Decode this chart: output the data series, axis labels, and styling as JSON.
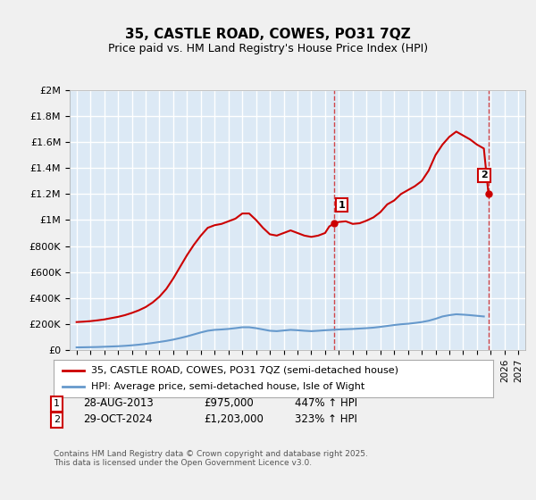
{
  "title": "35, CASTLE ROAD, COWES, PO31 7QZ",
  "subtitle": "Price paid vs. HM Land Registry's House Price Index (HPI)",
  "background_color": "#dce9f5",
  "plot_bg_color": "#dce9f5",
  "grid_color": "#ffffff",
  "red_line_color": "#cc0000",
  "blue_line_color": "#6699cc",
  "marker1_date_idx": 18.67,
  "marker2_date_idx": 29.83,
  "annotation1": "1",
  "annotation2": "2",
  "legend_label1": "35, CASTLE ROAD, COWES, PO31 7QZ (semi-detached house)",
  "legend_label2": "HPI: Average price, semi-detached house, Isle of Wight",
  "table_row1": [
    "1",
    "28-AUG-2013",
    "£975,000",
    "447% ↑ HPI"
  ],
  "table_row2": [
    "2",
    "29-OCT-2024",
    "£1,203,000",
    "323% ↑ HPI"
  ],
  "footer": "Contains HM Land Registry data © Crown copyright and database right 2025.\nThis data is licensed under the Open Government Licence v3.0.",
  "xlim_start": 1994.5,
  "xlim_end": 2027.5,
  "ylim_bottom": 0,
  "ylim_top": 2000000,
  "yticks": [
    0,
    200000,
    400000,
    600000,
    800000,
    1000000,
    1200000,
    1400000,
    1600000,
    1800000,
    2000000
  ],
  "ytick_labels": [
    "£0",
    "£200K",
    "£400K",
    "£600K",
    "£800K",
    "£1M",
    "£1.2M",
    "£1.4M",
    "£1.6M",
    "£1.8M",
    "£2M"
  ],
  "red_x": [
    1995,
    1995.5,
    1996,
    1996.5,
    1997,
    1997.5,
    1998,
    1998.5,
    1999,
    1999.5,
    2000,
    2000.5,
    2001,
    2001.5,
    2002,
    2002.5,
    2003,
    2003.5,
    2004,
    2004.5,
    2005,
    2005.5,
    2006,
    2006.5,
    2007,
    2007.5,
    2008,
    2008.5,
    2009,
    2009.5,
    2010,
    2010.5,
    2011,
    2011.5,
    2012,
    2012.5,
    2013,
    2013.3,
    2013.67,
    2014,
    2014.5,
    2015,
    2015.5,
    2016,
    2016.5,
    2017,
    2017.5,
    2018,
    2018.5,
    2019,
    2019.5,
    2020,
    2020.5,
    2021,
    2021.5,
    2022,
    2022.5,
    2023,
    2023.5,
    2024,
    2024.5,
    2024.83
  ],
  "red_y": [
    215000,
    218000,
    222000,
    228000,
    235000,
    245000,
    255000,
    268000,
    285000,
    305000,
    330000,
    365000,
    410000,
    470000,
    550000,
    640000,
    730000,
    810000,
    880000,
    940000,
    960000,
    970000,
    990000,
    1010000,
    1050000,
    1050000,
    1000000,
    940000,
    890000,
    880000,
    900000,
    920000,
    900000,
    880000,
    870000,
    880000,
    900000,
    950000,
    975000,
    985000,
    990000,
    970000,
    975000,
    995000,
    1020000,
    1060000,
    1120000,
    1150000,
    1200000,
    1230000,
    1260000,
    1300000,
    1380000,
    1500000,
    1580000,
    1640000,
    1680000,
    1650000,
    1620000,
    1580000,
    1550000,
    1203000
  ],
  "blue_x": [
    1995,
    1995.5,
    1996,
    1996.5,
    1997,
    1997.5,
    1998,
    1998.5,
    1999,
    1999.5,
    2000,
    2000.5,
    2001,
    2001.5,
    2002,
    2002.5,
    2003,
    2003.5,
    2004,
    2004.5,
    2005,
    2005.5,
    2006,
    2006.5,
    2007,
    2007.5,
    2008,
    2008.5,
    2009,
    2009.5,
    2010,
    2010.5,
    2011,
    2011.5,
    2012,
    2012.5,
    2013,
    2013.5,
    2014,
    2014.5,
    2015,
    2015.5,
    2016,
    2016.5,
    2017,
    2017.5,
    2018,
    2018.5,
    2019,
    2019.5,
    2020,
    2020.5,
    2021,
    2021.5,
    2022,
    2022.5,
    2023,
    2023.5,
    2024,
    2024.5
  ],
  "blue_y": [
    20000,
    21000,
    22000,
    23000,
    25000,
    27000,
    29000,
    32000,
    36000,
    41000,
    47000,
    54000,
    62000,
    70000,
    80000,
    92000,
    105000,
    120000,
    135000,
    148000,
    155000,
    158000,
    162000,
    168000,
    175000,
    175000,
    168000,
    158000,
    148000,
    145000,
    150000,
    155000,
    152000,
    148000,
    145000,
    148000,
    152000,
    155000,
    158000,
    160000,
    162000,
    165000,
    168000,
    172000,
    178000,
    185000,
    192000,
    198000,
    202000,
    208000,
    215000,
    225000,
    240000,
    258000,
    268000,
    275000,
    272000,
    268000,
    263000,
    258000
  ],
  "vline1_x": 2013.67,
  "vline2_x": 2024.83,
  "marker1_x": 2013.67,
  "marker1_y": 975000,
  "marker2_x": 2024.83,
  "marker2_y": 1203000
}
